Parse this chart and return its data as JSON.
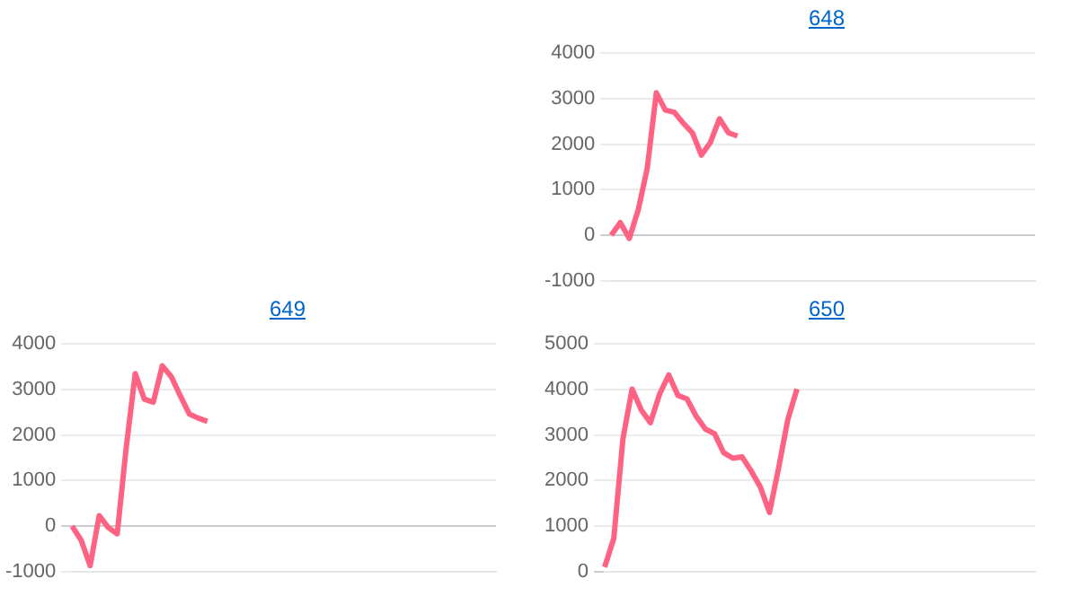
{
  "chart_data": [
    {
      "type": "line",
      "title": "648",
      "categories": [
        null,
        null,
        null,
        null,
        null,
        null,
        null,
        null,
        null,
        null,
        null,
        null,
        null,
        null,
        null,
        null,
        null,
        null,
        null,
        null,
        null,
        null,
        null,
        null,
        null,
        null,
        null,
        null,
        null,
        null,
        null,
        null,
        null,
        null,
        null,
        null,
        null,
        null,
        null,
        null,
        null,
        null,
        null,
        null,
        null,
        null,
        null,
        null
      ],
      "series": [
        {
          "color": "#ff6384",
          "values": [
            0,
            280,
            -70,
            560,
            1480,
            3130,
            2750,
            2700,
            2460,
            2250,
            1760,
            2040,
            2560,
            2250,
            2180,
            null,
            null,
            null,
            null,
            null,
            null,
            null,
            null,
            null,
            null,
            null,
            null,
            null,
            null,
            null,
            null,
            null,
            null,
            null,
            null,
            null,
            null,
            null,
            null,
            null,
            null,
            null,
            null,
            null,
            null,
            null,
            null,
            null
          ]
        }
      ],
      "ylim": [
        -1000,
        4000
      ],
      "yticks": [
        -1000,
        0,
        1000,
        2000,
        3000,
        4000
      ],
      "grid": "y",
      "tick_labels": "y",
      "marker": "none",
      "line_style": "solid"
    },
    {
      "type": "line",
      "title": "649",
      "categories": [
        null,
        null,
        null,
        null,
        null,
        null,
        null,
        null,
        null,
        null,
        null,
        null,
        null,
        null,
        null,
        null,
        null,
        null,
        null,
        null,
        null,
        null,
        null,
        null,
        null,
        null,
        null,
        null,
        null,
        null,
        null,
        null,
        null,
        null,
        null,
        null,
        null,
        null,
        null,
        null,
        null,
        null,
        null,
        null,
        null,
        null,
        null,
        null
      ],
      "series": [
        {
          "color": "#ff6384",
          "values": [
            0,
            -310,
            -870,
            230,
            -30,
            -170,
            1730,
            3350,
            2790,
            2720,
            3520,
            3280,
            2860,
            2460,
            2370,
            2300,
            null,
            null,
            null,
            null,
            null,
            null,
            null,
            null,
            null,
            null,
            null,
            null,
            null,
            null,
            null,
            null,
            null,
            null,
            null,
            null,
            null,
            null,
            null,
            null,
            null,
            null,
            null,
            null,
            null,
            null,
            null,
            null
          ]
        }
      ],
      "ylim": [
        -1000,
        4000
      ],
      "yticks": [
        -1000,
        0,
        1000,
        2000,
        3000,
        4000
      ],
      "grid": "y",
      "tick_labels": "y",
      "marker": "none",
      "line_style": "solid"
    },
    {
      "type": "line",
      "title": "650",
      "categories": [
        null,
        null,
        null,
        null,
        null,
        null,
        null,
        null,
        null,
        null,
        null,
        null,
        null,
        null,
        null,
        null,
        null,
        null,
        null,
        null,
        null,
        null,
        null,
        null,
        null,
        null,
        null,
        null,
        null,
        null,
        null,
        null,
        null,
        null,
        null,
        null,
        null,
        null,
        null,
        null,
        null,
        null,
        null,
        null,
        null,
        null,
        null,
        null
      ],
      "series": [
        {
          "color": "#ff6384",
          "values": [
            100,
            730,
            2920,
            4010,
            3550,
            3270,
            3900,
            4320,
            3870,
            3790,
            3410,
            3130,
            3030,
            2610,
            2490,
            2520,
            2210,
            1860,
            1300,
            2280,
            3340,
            4010,
            null,
            null,
            null,
            null,
            null,
            null,
            null,
            null,
            null,
            null,
            null,
            null,
            null,
            null,
            null,
            null,
            null,
            null,
            null,
            null,
            null,
            null,
            null,
            null,
            null,
            null
          ]
        }
      ],
      "ylim": [
        0,
        5000
      ],
      "yticks": [
        0,
        1000,
        2000,
        3000,
        4000,
        5000
      ],
      "grid": "y",
      "tick_labels": "y",
      "marker": "none",
      "line_style": "solid"
    }
  ]
}
